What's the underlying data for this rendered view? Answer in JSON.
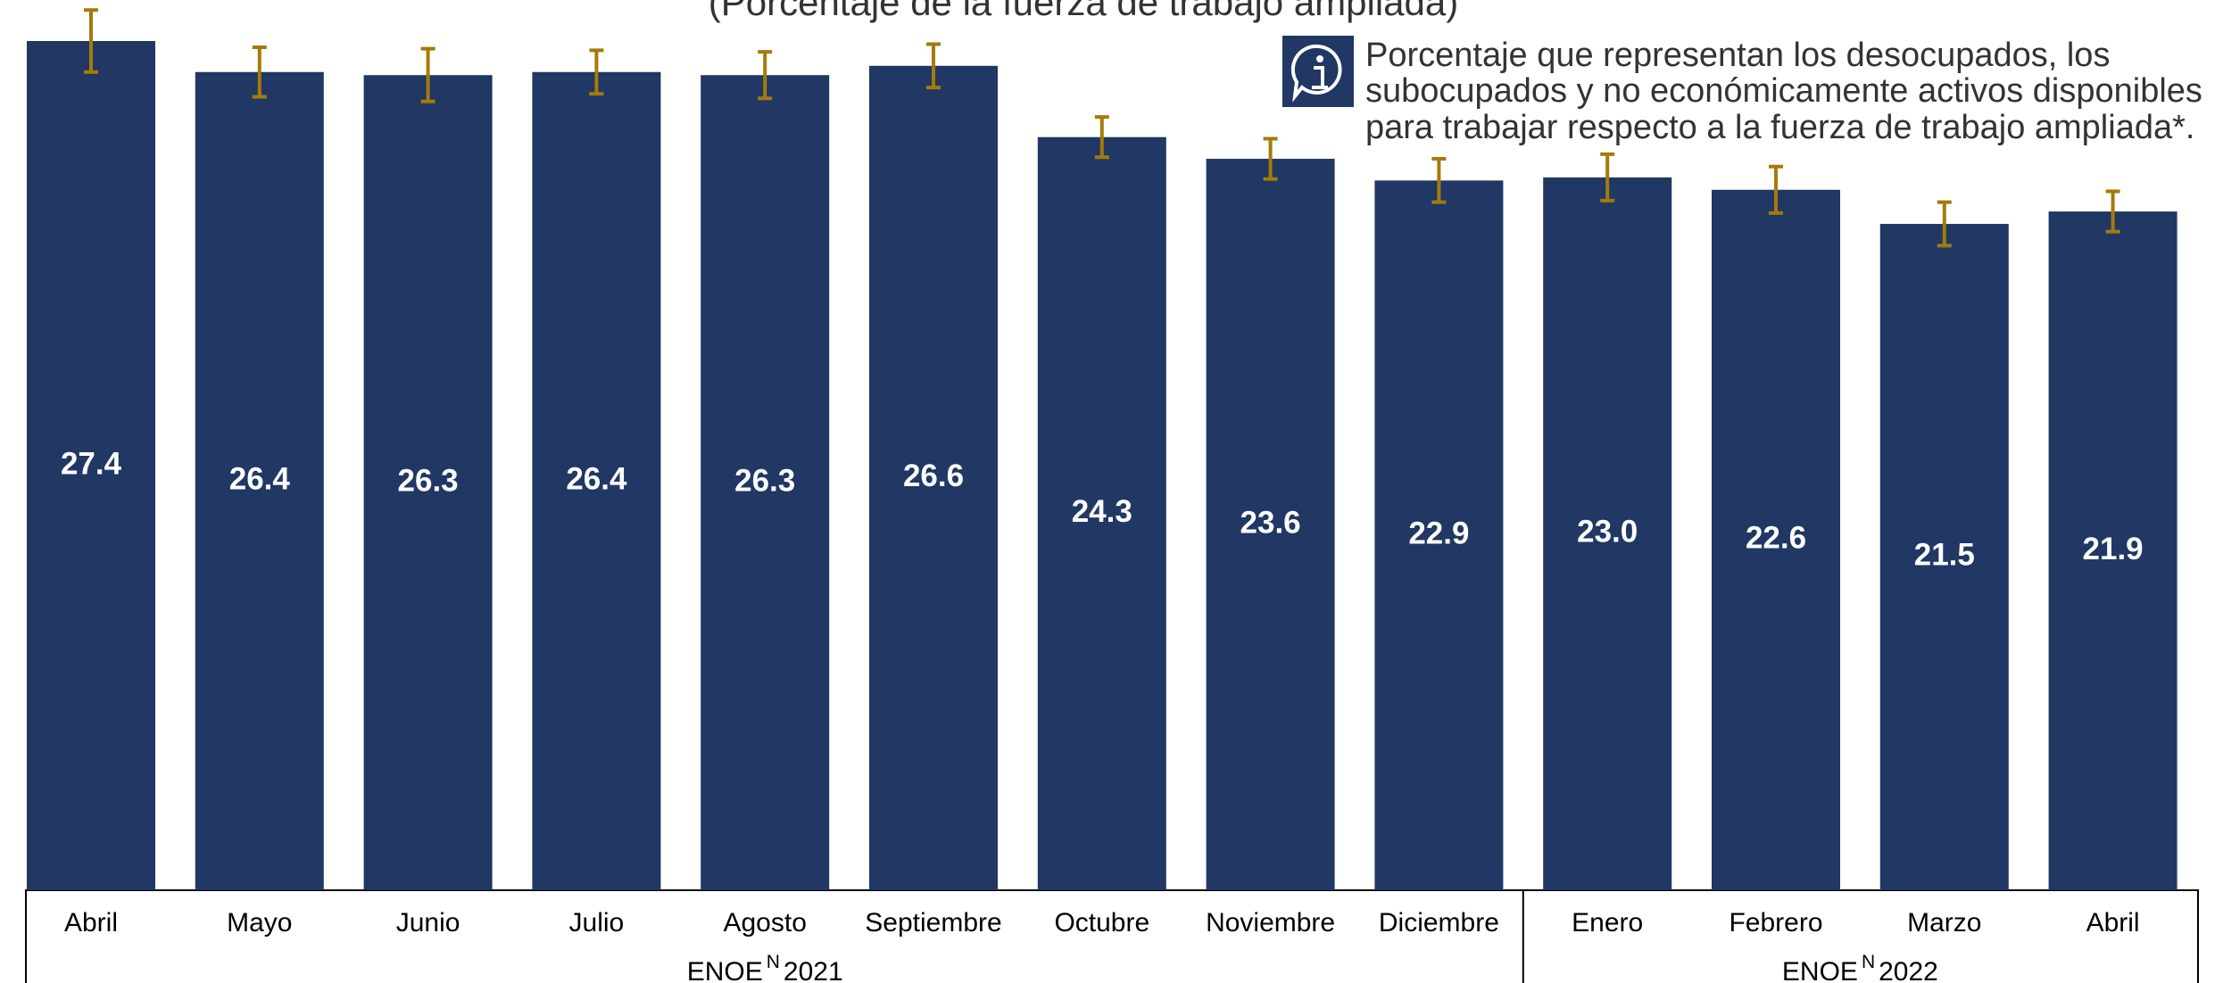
{
  "chart_data": {
    "type": "bar",
    "subtitle": "(Porcentaje de la fuerza de trabajo ampliada)",
    "note": [
      "Porcentaje que representan los desocupados, los",
      "subocupados y no económicamente activos disponibles",
      "para trabajar respecto a la fuerza de trabajo ampliada*."
    ],
    "color": "#213764",
    "error_color": "#a37b0a",
    "groups": [
      {
        "label": "ENOE",
        "superscript": "N",
        "year": "2021",
        "categories": [
          "Abril",
          "Mayo",
          "Junio",
          "Julio",
          "Agosto",
          "Septiembre",
          "Octubre",
          "Noviembre",
          "Diciembre"
        ],
        "values": [
          27.4,
          26.4,
          26.3,
          26.4,
          26.3,
          26.6,
          24.3,
          23.6,
          22.9
        ],
        "value_labels": [
          "27.4",
          "26.4",
          "26.3",
          "26.4",
          "26.3",
          "26.6",
          "24.3",
          "23.6",
          "22.9"
        ],
        "errors": [
          1.0,
          0.8,
          0.85,
          0.7,
          0.75,
          0.7,
          0.65,
          0.65,
          0.7
        ]
      },
      {
        "label": "ENOE",
        "superscript": "N",
        "year": "2022",
        "categories": [
          "Enero",
          "Febrero",
          "Marzo",
          "Abril"
        ],
        "values": [
          23.0,
          22.6,
          21.5,
          21.9
        ],
        "value_labels": [
          "23.0",
          "22.6",
          "21.5",
          "21.9"
        ],
        "errors": [
          0.75,
          0.75,
          0.7,
          0.65
        ]
      }
    ]
  }
}
